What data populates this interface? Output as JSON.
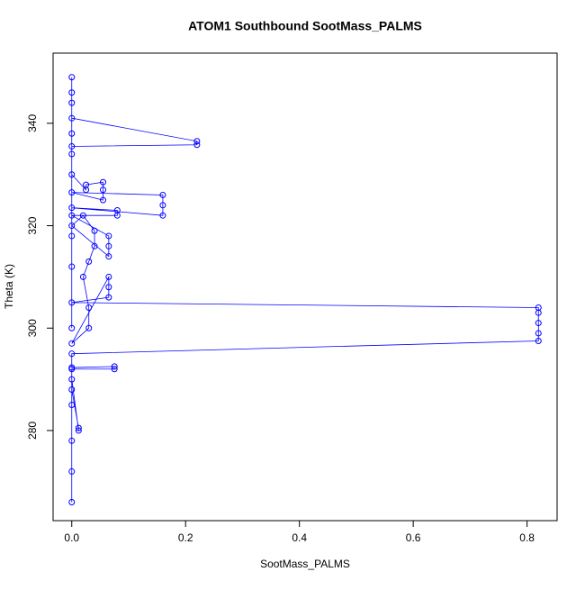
{
  "chart_data": {
    "type": "line",
    "title": "ATOM1 Southbound SootMass_PALMS",
    "xlabel": "SootMass_PALMS",
    "ylabel": "Theta (K)",
    "x": [
      0,
      0,
      0,
      0,
      0,
      0.012,
      0.012,
      0,
      0,
      0.075,
      0.075,
      0,
      0,
      0.82,
      0.82,
      0.82,
      0.82,
      0.82,
      0,
      0.065,
      0.065,
      0.065,
      0,
      0.03,
      0.03,
      0.02,
      0.03,
      0.04,
      0.04,
      0.02,
      0,
      0.065,
      0.065,
      0.065,
      0,
      0.08,
      0.08,
      0,
      0.16,
      0.16,
      0.16,
      0,
      0.055,
      0.055,
      0.055,
      0.025,
      0.025,
      0,
      0,
      0.22,
      0.22,
      0,
      0,
      0,
      0,
      0,
      0,
      0,
      0,
      0
    ],
    "series": [
      {
        "name": "Theta",
        "color": "#0000ff",
        "values": [
          266,
          272,
          278,
          285,
          290,
          280,
          280.5,
          288,
          292,
          292,
          292.5,
          292.3,
          295,
          297.5,
          299,
          301,
          303,
          304,
          305,
          306,
          308,
          310,
          297,
          300,
          304,
          310,
          313,
          316,
          319,
          322,
          320,
          314,
          316,
          318,
          322,
          322,
          323,
          323.5,
          322,
          324,
          326,
          326.5,
          325,
          327,
          328.5,
          328,
          327,
          330,
          335.5,
          335.8,
          336.5,
          341,
          344,
          349,
          346,
          338,
          334,
          318,
          312,
          300
        ]
      }
    ],
    "xlim": [
      -0.0328,
      0.8528
    ],
    "ylim": [
      262.4,
      353.7
    ],
    "xticks": [
      {
        "value": 0,
        "label": "0.0"
      },
      0.2,
      0.4,
      0.6,
      0.8
    ],
    "yticks": [
      280,
      300,
      320,
      340
    ]
  }
}
